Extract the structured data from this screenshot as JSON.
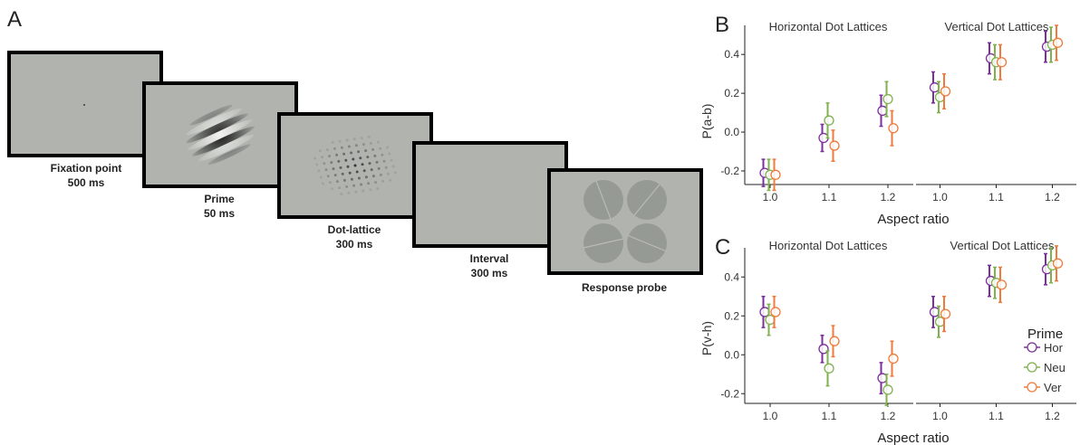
{
  "panels": {
    "a": "A",
    "b": "B",
    "c": "C"
  },
  "stimuli": [
    {
      "line1": "Fixation point",
      "line2": "500 ms"
    },
    {
      "line1": "Prime",
      "line2": "50 ms"
    },
    {
      "line1": "Dot-lattice",
      "line2": "300 ms"
    },
    {
      "line1": "Interval",
      "line2": "300 ms"
    },
    {
      "line1": "Response probe",
      "line2": ""
    }
  ],
  "colors": {
    "Hor": "#7b2f9c",
    "Neu": "#7fb24e",
    "Ver": "#f07a3c"
  },
  "chart_data": [
    {
      "type": "scatter",
      "panel": "B",
      "ylabel": "P(a-b)",
      "xlabel": "Aspect ratio",
      "ylim": [
        -0.27,
        0.55
      ],
      "yticks": [
        "0.4",
        "0.2",
        "0.0",
        "-0.2"
      ],
      "facets": [
        "Horizontal Dot Lattices",
        "Vertical Dot Lattices"
      ],
      "categories": [
        "1.0",
        "1.1",
        "1.2"
      ],
      "series": [
        {
          "values": [
            [
              -0.21,
              -0.03,
              0.11
            ],
            [
              0.23,
              0.38,
              0.44
            ]
          ],
          "err": [
            [
              0.07,
              0.07,
              0.08
            ],
            [
              0.08,
              0.08,
              0.08
            ]
          ]
        },
        {
          "values": [
            [
              -0.22,
              0.06,
              0.17
            ],
            [
              0.18,
              0.36,
              0.45
            ]
          ],
          "err": [
            [
              0.08,
              0.09,
              0.09
            ],
            [
              0.08,
              0.09,
              0.09
            ]
          ]
        },
        {
          "values": [
            [
              -0.22,
              -0.07,
              0.02
            ],
            [
              0.21,
              0.36,
              0.46
            ]
          ],
          "err": [
            [
              0.08,
              0.08,
              0.09
            ],
            [
              0.09,
              0.09,
              0.09
            ]
          ]
        }
      ]
    },
    {
      "type": "scatter",
      "panel": "C",
      "ylabel": "P(v-h)",
      "xlabel": "Aspect ratio",
      "ylim": [
        -0.25,
        0.55
      ],
      "yticks": [
        "0.4",
        "0.2",
        "0.0",
        "-0.2"
      ],
      "facets": [
        "Horizontal Dot Lattices",
        "Vertical Dot Lattices"
      ],
      "categories": [
        "1.0",
        "1.1",
        "1.2"
      ],
      "legend": {
        "title": "Prime",
        "entries": [
          "Hor",
          "Neu",
          "Ver"
        ],
        "position": "right"
      },
      "series": [
        {
          "name": "Hor",
          "values": [
            [
              0.22,
              0.03,
              -0.12
            ],
            [
              0.22,
              0.38,
              0.44
            ]
          ],
          "err": [
            [
              0.08,
              0.07,
              0.08
            ],
            [
              0.08,
              0.08,
              0.08
            ]
          ]
        },
        {
          "name": "Neu",
          "values": [
            [
              0.18,
              -0.07,
              -0.18
            ],
            [
              0.17,
              0.37,
              0.46
            ]
          ],
          "err": [
            [
              0.08,
              0.09,
              0.08
            ],
            [
              0.08,
              0.08,
              0.09
            ]
          ]
        },
        {
          "name": "Ver",
          "values": [
            [
              0.22,
              0.07,
              -0.02
            ],
            [
              0.21,
              0.36,
              0.47
            ]
          ],
          "err": [
            [
              0.08,
              0.08,
              0.09
            ],
            [
              0.09,
              0.09,
              0.09
            ]
          ]
        }
      ]
    }
  ]
}
